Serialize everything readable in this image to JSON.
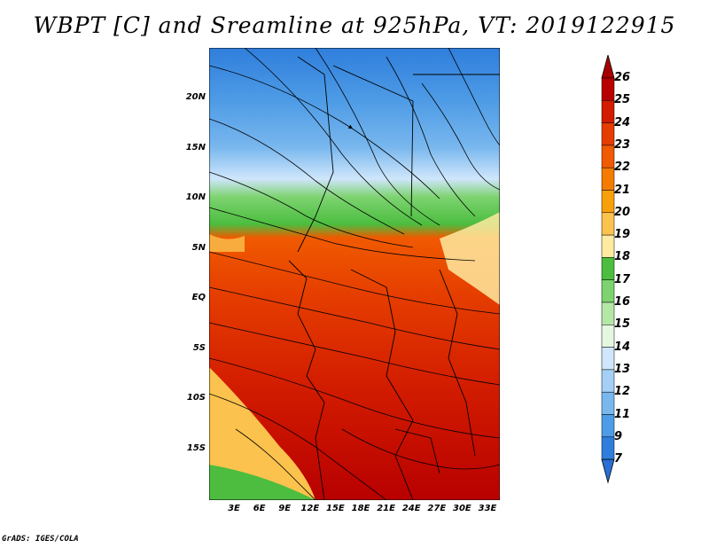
{
  "title": "WBPT [C] and Sreamline at 925hPa, VT: 2019122915",
  "credit": "GrADS: IGES/COLA",
  "map": {
    "lat_labels": [
      "20N",
      "15N",
      "10N",
      "5N",
      "EQ",
      "5S",
      "10S",
      "15S"
    ],
    "lon_labels": [
      "3E",
      "6E",
      "9E",
      "12E",
      "15E",
      "18E",
      "21E",
      "24E",
      "27E",
      "30E",
      "33E"
    ]
  },
  "colorbar": {
    "labels": [
      "26",
      "25",
      "24",
      "23",
      "22",
      "21",
      "20",
      "19",
      "18",
      "17",
      "16",
      "15",
      "14",
      "13",
      "12",
      "11",
      "9",
      "7"
    ],
    "colors": [
      "#b80000",
      "#d21c00",
      "#e53d00",
      "#f05a00",
      "#f57c00",
      "#f8a00c",
      "#fbc24d",
      "#feeaa0",
      "#4cbd3f",
      "#7dd370",
      "#b4e7a6",
      "#e6f7e0",
      "#cfe6fb",
      "#a4d0f5",
      "#79b7ee",
      "#4f9ce6",
      "#2f7edc"
    ],
    "top_arrow_color": "#a80000",
    "bottom_arrow_color": "#2a6fd6"
  }
}
